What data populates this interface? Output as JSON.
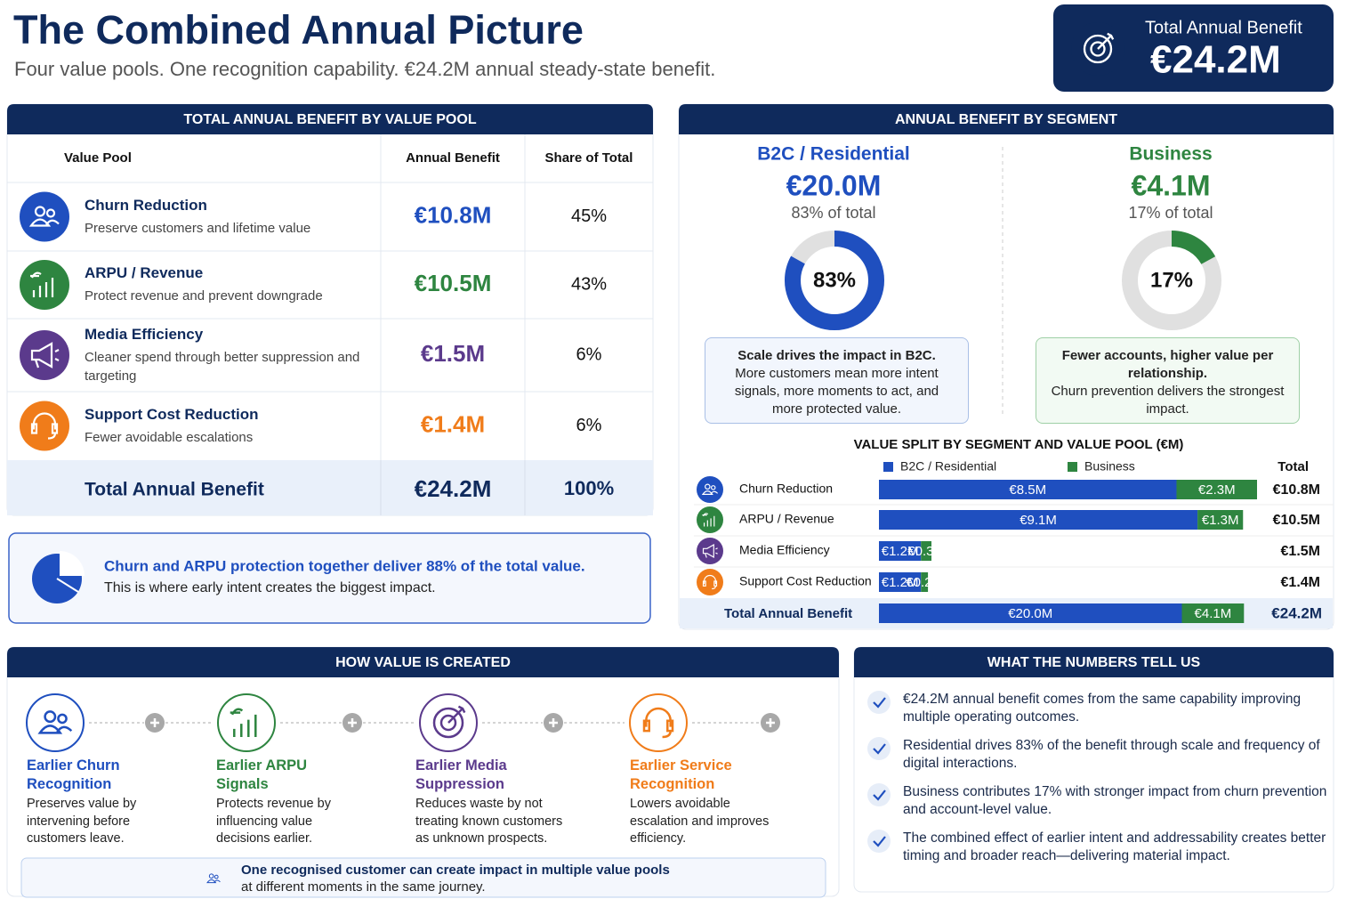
{
  "header": {
    "title": "The Combined Annual Picture",
    "subtitle": "Four value pools. One recognition capability. €24.2M annual steady-state benefit.",
    "badge_label": "Total Annual Benefit",
    "badge_value": "€24.2M"
  },
  "pool_table": {
    "title": "TOTAL ANNUAL BENEFIT BY VALUE POOL",
    "columns": [
      "Value Pool",
      "Annual Benefit",
      "Share of Total"
    ],
    "rows": [
      {
        "name": "Churn Reduction",
        "description": "Preserve customers and lifetime value",
        "benefit": "€10.8M",
        "share": "45%",
        "color": "#1f4fbf"
      },
      {
        "name": "ARPU / Revenue",
        "description": "Protect revenue and prevent downgrade",
        "benefit": "€10.5M",
        "share": "43%",
        "color": "#2e8540"
      },
      {
        "name": "Media Efficiency",
        "description": "Cleaner spend through better suppression and targeting",
        "benefit": "€1.5M",
        "share": "6%",
        "color": "#5b3a8c"
      },
      {
        "name": "Support Cost Reduction",
        "description": "Fewer avoidable escalations",
        "benefit": "€1.4M",
        "share": "6%",
        "color": "#f07c1a"
      }
    ],
    "total": {
      "label": "Total Annual Benefit",
      "benefit": "€24.2M",
      "share": "100%"
    }
  },
  "callout": {
    "title": "Churn and ARPU protection together deliver 88% of the total value.",
    "text": "This is where early intent creates the biggest impact."
  },
  "segments": {
    "title": "ANNUAL BENEFIT BY SEGMENT",
    "items": [
      {
        "name": "B2C / Residential",
        "value": "€20.0M",
        "share_text": "83% of total",
        "donut": {
          "value": 83,
          "label": "83%"
        },
        "color": "#1f4fbf",
        "note_title": "Scale drives the impact in B2C.",
        "note_text": "More customers mean more intent signals, more moments to act, and more protected value."
      },
      {
        "name": "Business",
        "value": "€4.1M",
        "share_text": "17% of total",
        "donut": {
          "value": 17,
          "label": "17%"
        },
        "color": "#2e8540",
        "note_title": "Fewer accounts, higher value per relationship.",
        "note_text": "Churn prevention delivers the strongest impact."
      }
    ]
  },
  "split_chart": {
    "type": "bar",
    "title": "VALUE SPLIT BY SEGMENT AND VALUE POOL (€M)",
    "categories": [
      "Churn Reduction",
      "ARPU / Revenue",
      "Media Efficiency",
      "Support Cost Reduction"
    ],
    "series": [
      {
        "name": "B2C / Residential",
        "color": "#1f4fbf",
        "values": [
          8.5,
          9.1,
          1.2,
          1.2
        ],
        "value_labels": [
          "€8.5M",
          "€9.1M",
          "€1.2M",
          "€1.2M"
        ]
      },
      {
        "name": "Business",
        "color": "#2e8540",
        "values": [
          2.3,
          1.3,
          0.3,
          0.2
        ],
        "value_labels": [
          "€2.3M",
          "€1.3M",
          "€0.3M",
          "€0.2M"
        ]
      }
    ],
    "totals_header": "Total",
    "totals": {
      "values": [
        10.8,
        10.5,
        1.5,
        1.4
      ],
      "value_labels": [
        "€10.8M",
        "€10.5M",
        "€1.5M",
        "€1.4M"
      ]
    },
    "total_row": {
      "label": "Total Annual Benefit",
      "values": [
        20.0,
        4.1
      ],
      "value_labels": [
        "€20.0M",
        "€4.1M"
      ],
      "total": 24.2,
      "total_label": "€24.2M"
    }
  },
  "how": {
    "title": "HOW VALUE IS CREATED",
    "steps": [
      {
        "title": "Earlier Churn Recognition",
        "text": "Preserves value by intervening before customers leave.",
        "color": "#1f4fbf"
      },
      {
        "title": "Earlier ARPU Signals",
        "text": "Protects revenue by influencing value decisions earlier.",
        "color": "#2e8540"
      },
      {
        "title": "Earlier Media Suppression",
        "text": "Reduces waste by not treating known customers as unknown prospects.",
        "color": "#5b3a8c"
      },
      {
        "title": "Earlier Service Recognition",
        "text": "Lowers avoidable escalation and improves efficiency.",
        "color": "#f07c1a"
      }
    ],
    "note": "One recognised customer can create impact in multiple value pools",
    "note_text": "at different moments in the same journey."
  },
  "insights": {
    "title": "WHAT THE NUMBERS TELL US",
    "items": [
      "€24.2M annual benefit comes from the same capability improving multiple operating outcomes.",
      "Residential drives 83% of the benefit through scale and frequency of digital interactions.",
      "Business contributes 17% with stronger impact from churn prevention and account-level value.",
      "The combined effect of earlier intent and addressability creates better timing and broader reach—delivering material impact."
    ]
  }
}
